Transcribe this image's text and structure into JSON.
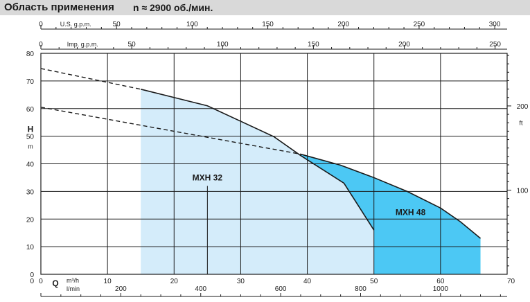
{
  "header": {
    "title": "Область применения",
    "subtitle": "n ≈ 2900 об./мин."
  },
  "chart_data": {
    "type": "area",
    "x_primary": {
      "unit": "m³/h",
      "symbol": "Q",
      "range": [
        0,
        70
      ],
      "ticks": [
        0,
        10,
        20,
        30,
        40,
        50,
        60,
        70
      ]
    },
    "x_lmin": {
      "unit": "l/min",
      "ticks": [
        200,
        400,
        600,
        800,
        1000
      ]
    },
    "x_usgpm": {
      "label": "U.S. g.p.m.",
      "ticks": [
        0,
        50,
        100,
        150,
        200,
        250,
        300
      ]
    },
    "x_impgpm": {
      "label": "Imp. g.p.m.",
      "ticks": [
        0,
        50,
        100,
        150,
        200,
        250
      ]
    },
    "y_primary": {
      "symbol": "H",
      "unit": "m",
      "range": [
        0,
        80
      ],
      "ticks": [
        0,
        10,
        20,
        30,
        40,
        50,
        60,
        70,
        80
      ]
    },
    "y_secondary": {
      "unit": "ft",
      "ticks": [
        100,
        200
      ]
    },
    "grid": true,
    "series": [
      {
        "name": "MXH 32",
        "color": "#d4ecfa",
        "curve": [
          [
            15,
            67
          ],
          [
            25,
            61
          ],
          [
            35,
            49.8
          ],
          [
            39,
            43
          ],
          [
            45.5,
            33
          ],
          [
            50,
            16
          ]
        ],
        "dashed_extension": [
          [
            0,
            74.5
          ],
          [
            15,
            67
          ]
        ]
      },
      {
        "name": "MXH 48",
        "color": "#4cc8f4",
        "curve": [
          [
            39,
            43.5
          ],
          [
            45,
            39.5
          ],
          [
            50,
            35
          ],
          [
            55,
            30
          ],
          [
            60,
            24
          ],
          [
            63,
            19
          ],
          [
            66,
            13
          ]
        ],
        "dashed_extension": [
          [
            0,
            60.5
          ],
          [
            39,
            43.5
          ]
        ]
      }
    ]
  }
}
